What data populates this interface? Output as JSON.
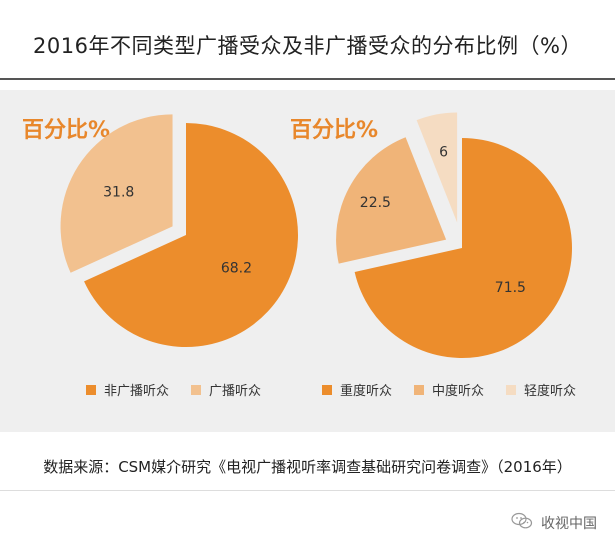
{
  "title": "2016年不同类型广播受众及非广播受众的分布比例（%）",
  "source": "数据来源：CSM媒介研究《电视广播视听率调查基础研究问卷调查》（2016年）",
  "watermark": "收视中国",
  "chart_data": [
    {
      "type": "pie",
      "title": "百分比%",
      "labels": [
        "非广播听众",
        "广播听众"
      ],
      "values": [
        68.2,
        31.8
      ],
      "colors": [
        "#ec8d2c",
        "#f2c18f"
      ],
      "exploded": "广播听众",
      "legend": "bottom"
    },
    {
      "type": "pie",
      "title": "百分比%",
      "labels": [
        "重度听众",
        "中度听众",
        "轻度听众"
      ],
      "values": [
        71.5,
        22.5,
        6
      ],
      "colors": [
        "#ec8d2c",
        "#f0b478",
        "#f5dcc2"
      ],
      "exploded": [
        "中度听众",
        "轻度听众"
      ],
      "legend": "bottom"
    }
  ]
}
